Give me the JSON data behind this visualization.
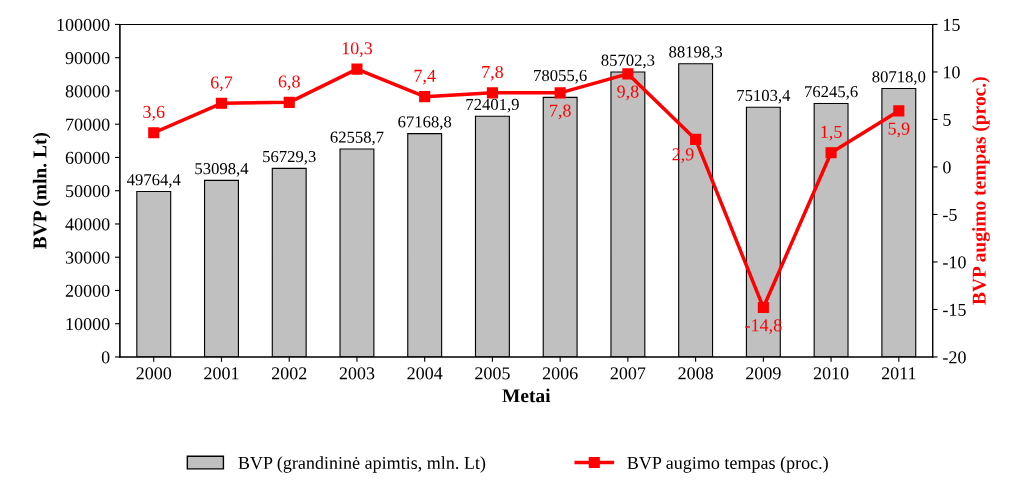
{
  "chart_data": {
    "type": "bar",
    "xlabel": "Metai",
    "ylabel": "BVP (mln. Lt)",
    "y2label": "BVP augimo tempas (proc.)",
    "categories": [
      "2000",
      "2001",
      "2002",
      "2003",
      "2004",
      "2005",
      "2006",
      "2007",
      "2008",
      "2009",
      "2010",
      "2011"
    ],
    "series": [
      {
        "name": "BVP (grandininė apimtis, mln. Lt)",
        "color": "#c0c0c0",
        "values": [
          49764.4,
          53098.4,
          56729.3,
          62558.7,
          67168.8,
          72401.9,
          78055.6,
          85702.3,
          88198.3,
          75103.4,
          76245.6,
          80718.0
        ],
        "value_labels": [
          "49764,4",
          "53098,4",
          "56729,3",
          "62558,7",
          "67168,8",
          "72401,9",
          "78055,6",
          "85702,3",
          "88198,3",
          "75103,4",
          "76245,6",
          "80718,0"
        ]
      },
      {
        "name": "BVP augimo tempas (proc.)",
        "type": "line",
        "axis": "y2",
        "color": "#ff0000",
        "marker": "square",
        "values": [
          3.6,
          6.7,
          6.8,
          10.3,
          7.4,
          7.8,
          7.8,
          9.8,
          2.9,
          -14.8,
          1.5,
          5.9
        ],
        "value_labels": [
          "3,6",
          "6,7",
          "6,8",
          "10,3",
          "7,4",
          "7,8",
          "7,8",
          "9,8",
          "2,9",
          "-14,8",
          "1,5",
          "5,9"
        ]
      }
    ],
    "ylim": [
      0,
      100000
    ],
    "yticks": [
      0,
      10000,
      20000,
      30000,
      40000,
      50000,
      60000,
      70000,
      80000,
      90000,
      100000
    ],
    "y2lim": [
      -20,
      15
    ],
    "y2ticks": [
      -20,
      -15,
      -10,
      -5,
      0,
      5,
      10,
      15
    ],
    "grid": false,
    "legend": "bottom"
  }
}
